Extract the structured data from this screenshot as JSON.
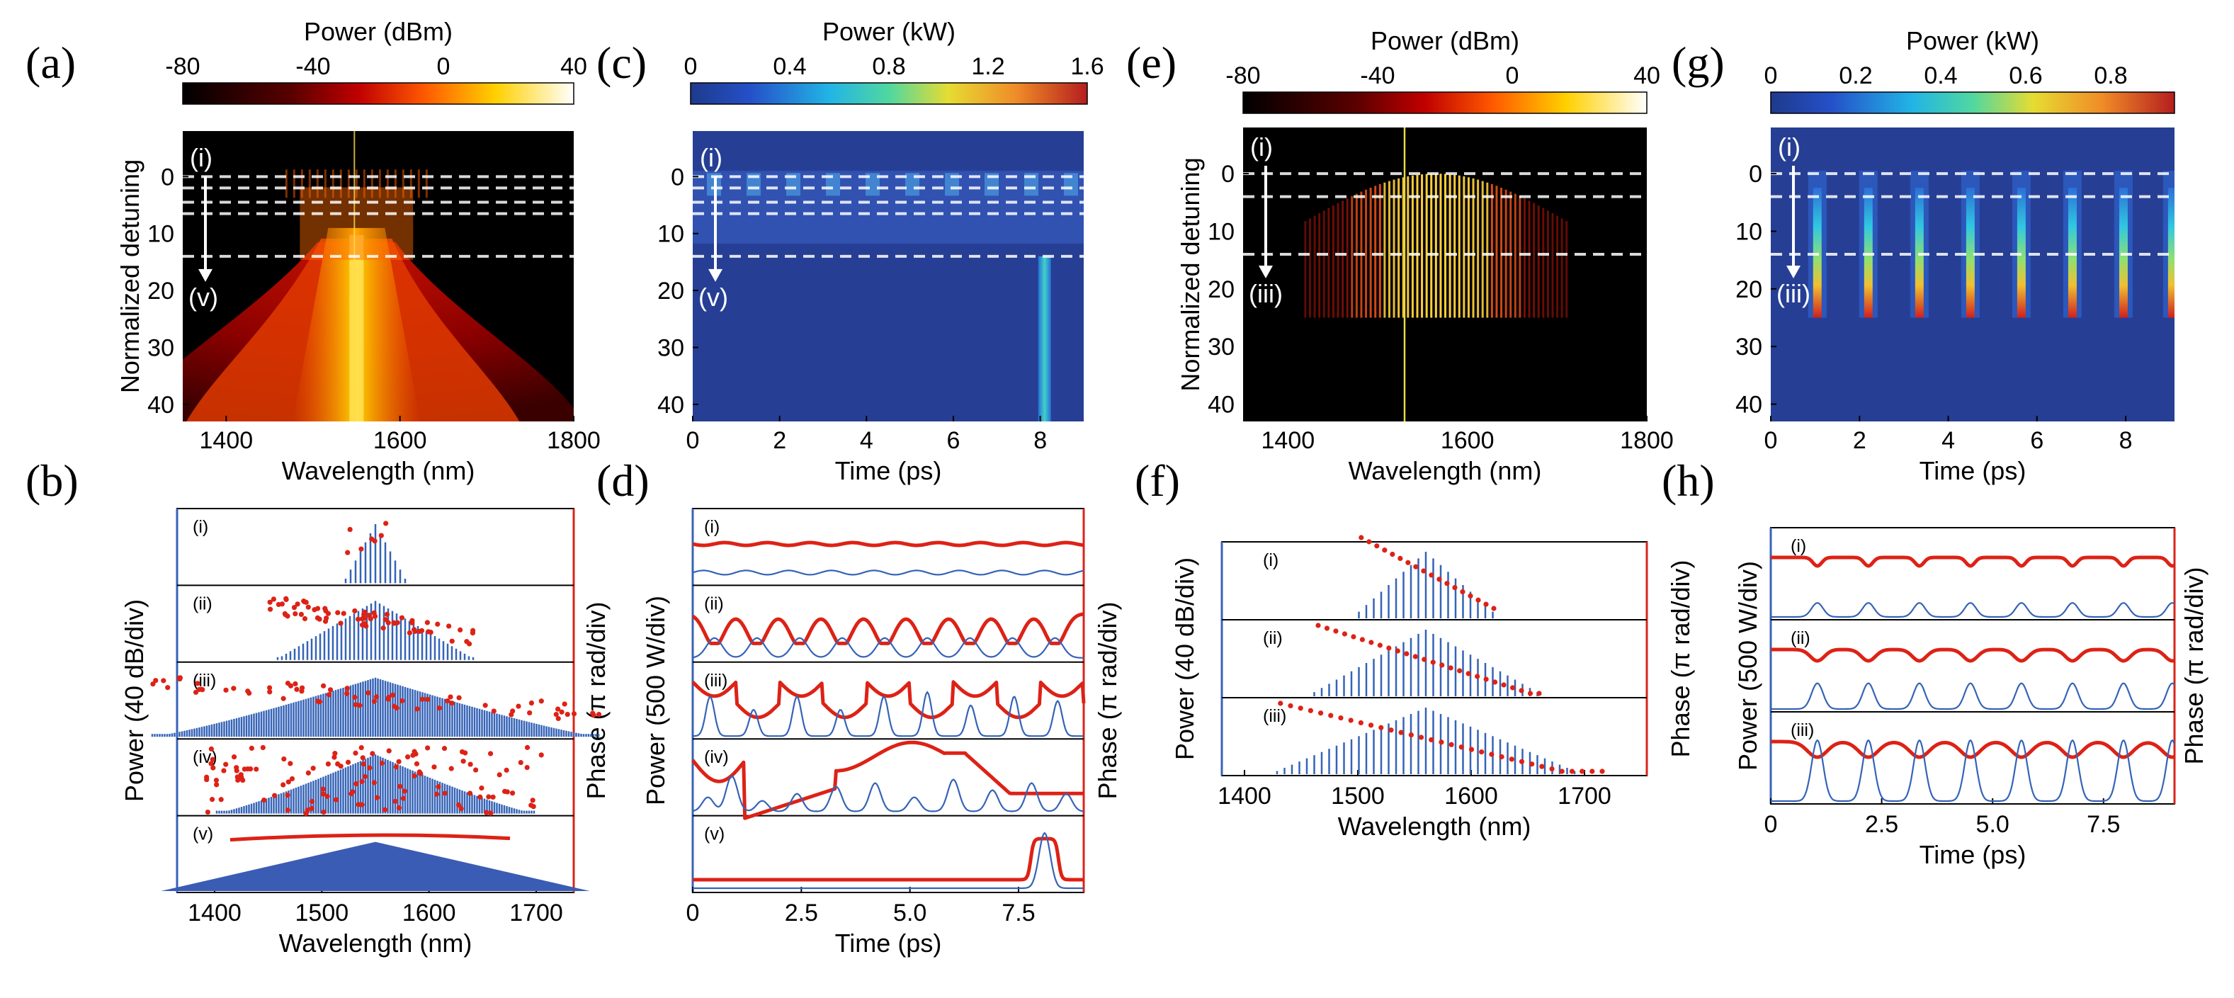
{
  "panels": {
    "a": {
      "label": "(a)"
    },
    "b": {
      "label": "(b)"
    },
    "c": {
      "label": "(c)"
    },
    "d": {
      "label": "(d)"
    },
    "e": {
      "label": "(e)"
    },
    "f": {
      "label": "(f)"
    },
    "g": {
      "label": "(g)"
    },
    "h": {
      "label": "(h)"
    }
  },
  "arrows": {
    "a": {
      "top": "(i)",
      "bottom": "(v)"
    },
    "c": {
      "top": "(i)",
      "bottom": "(v)"
    },
    "e": {
      "top": "(i)",
      "bottom": "(iii)"
    },
    "g": {
      "top": "(i)",
      "bottom": "(iii)"
    }
  },
  "chart_data": [
    {
      "id": "a",
      "type": "heatmap",
      "title": "Power (dBm)",
      "colorbar": {
        "colormap": "hot",
        "range": [
          -80,
          40
        ],
        "ticks": [
          "-80",
          "-40",
          "0",
          "40"
        ]
      },
      "xlabel": "Wavelength (nm)",
      "xlim": [
        1350,
        1800
      ],
      "xticks": [
        "1400",
        "1600",
        "1800"
      ],
      "ylabel": "Normalized detuning",
      "ylim": [
        -8,
        43
      ],
      "yticks": [
        "0",
        "10",
        "20",
        "30",
        "40"
      ],
      "dashed_lines_detuning": [
        0,
        2,
        4.5,
        6.5,
        14
      ],
      "pump_wavelength_nm": 1550
    },
    {
      "id": "b",
      "type": "bar",
      "ylabel_left": "Power  (40 dB/div)",
      "ylabel_right": "Phase (π rad/div)",
      "xlabel": "Wavelength (nm)",
      "xlim": [
        1365,
        1735
      ],
      "xticks": [
        "1400",
        "1500",
        "1600",
        "1700"
      ],
      "rows": [
        "(i)",
        "(ii)",
        "(iii)",
        "(iv)",
        "(v)"
      ],
      "series": [
        {
          "name": "power",
          "spectral_halfwidth_nm": [
            28,
            95,
            210,
            150,
            125
          ]
        },
        {
          "name": "phase",
          "pattern": [
            "dots",
            "dots",
            "dots",
            "scattered",
            "flat"
          ]
        }
      ]
    },
    {
      "id": "c",
      "type": "heatmap",
      "title": "Power (kW)",
      "colorbar": {
        "colormap": "jet",
        "range": [
          0,
          1.6
        ],
        "ticks": [
          "0",
          "0.4",
          "0.8",
          "1.2",
          "1.6"
        ]
      },
      "xlabel": "Time (ps)",
      "xlim": [
        0,
        9
      ],
      "xticks": [
        "0",
        "2",
        "4",
        "6",
        "8"
      ],
      "ylabel": "Normalized detuning",
      "ylim": [
        -8,
        43
      ],
      "yticks": [
        "0",
        "10",
        "20",
        "30",
        "40"
      ],
      "dashed_lines_detuning": [
        0,
        2,
        4.5,
        6.5,
        14
      ],
      "soliton_time_ps": 8.1
    },
    {
      "id": "d",
      "type": "line",
      "ylabel_left": "Power (500 W/div)",
      "ylabel_right": "Phase (π rad/div)",
      "xlabel": "Time (ps)",
      "xlim": [
        0,
        9
      ],
      "xticks": [
        "0",
        "2.5",
        "5.0",
        "7.5"
      ],
      "rows": [
        "(i)",
        "(ii)",
        "(iii)",
        "(iv)",
        "(v)"
      ],
      "series": [
        {
          "name": "power",
          "pulses_per_window": [
            0,
            9,
            9,
            8,
            1
          ]
        },
        {
          "name": "phase",
          "pattern": [
            "flat",
            "periodic",
            "broken",
            "irregular",
            "step"
          ]
        }
      ]
    },
    {
      "id": "e",
      "type": "heatmap",
      "title": "Power (dBm)",
      "colorbar": {
        "colormap": "hot",
        "range": [
          -80,
          40
        ],
        "ticks": [
          "-80",
          "-40",
          "0",
          "40"
        ]
      },
      "xlabel": "Wavelength (nm)",
      "xlim": [
        1350,
        1800
      ],
      "xticks": [
        "1400",
        "1600",
        "1800"
      ],
      "ylabel": "Normalized detuning",
      "ylim": [
        -8,
        43
      ],
      "yticks": [
        "0",
        "10",
        "20",
        "30",
        "40"
      ],
      "dashed_lines_detuning": [
        0,
        4,
        14
      ],
      "pump_wavelength_nm": 1530,
      "comb_end_detuning": 25
    },
    {
      "id": "f",
      "type": "bar",
      "ylabel_left": "Power (40 dB/div)",
      "ylabel_right": "Phase (π rad/div)",
      "xlabel": "Wavelength (nm)",
      "xlim": [
        1380,
        1755
      ],
      "xticks": [
        "1400",
        "1500",
        "1600",
        "1700"
      ],
      "rows": [
        "(i)",
        "(ii)",
        "(iii)"
      ],
      "series": [
        {
          "name": "power",
          "spectral_halfwidth_nm": [
            60,
            100,
            135
          ]
        },
        {
          "name": "phase",
          "slope": "descending"
        }
      ]
    },
    {
      "id": "g",
      "type": "heatmap",
      "title": "Power (kW)",
      "colorbar": {
        "colormap": "jet",
        "range": [
          0,
          0.95
        ],
        "ticks": [
          "0",
          "0.2",
          "0.4",
          "0.6",
          "0.8"
        ]
      },
      "xlabel": "Time (ps)",
      "xlim": [
        0,
        9.1
      ],
      "xticks": [
        "0",
        "2",
        "4",
        "6",
        "8"
      ],
      "ylabel": "",
      "ylim": [
        -8,
        43
      ],
      "yticks": [
        "0",
        "10",
        "20",
        "30",
        "40"
      ],
      "dashed_lines_detuning": [
        0,
        4,
        14
      ],
      "pulse_times_ps": [
        1.05,
        2.2,
        3.35,
        4.5,
        5.65,
        6.8,
        7.95,
        9.05
      ],
      "pulses_end_detuning": 25
    },
    {
      "id": "h",
      "type": "line",
      "ylabel_left": "Power (500 W/div)",
      "ylabel_right": "Phase (π rad/div)",
      "xlabel": "Time (ps)",
      "xlim": [
        0,
        9.1
      ],
      "xticks": [
        "0",
        "2.5",
        "5.0",
        "7.5"
      ],
      "rows": [
        "(i)",
        "(ii)",
        "(iii)"
      ],
      "series": [
        {
          "name": "power",
          "pulse_times_ps": [
            1.05,
            2.2,
            3.35,
            4.5,
            5.65,
            6.8,
            7.95,
            9.05
          ]
        },
        {
          "name": "phase",
          "pattern": "periodic dips"
        }
      ]
    }
  ]
}
